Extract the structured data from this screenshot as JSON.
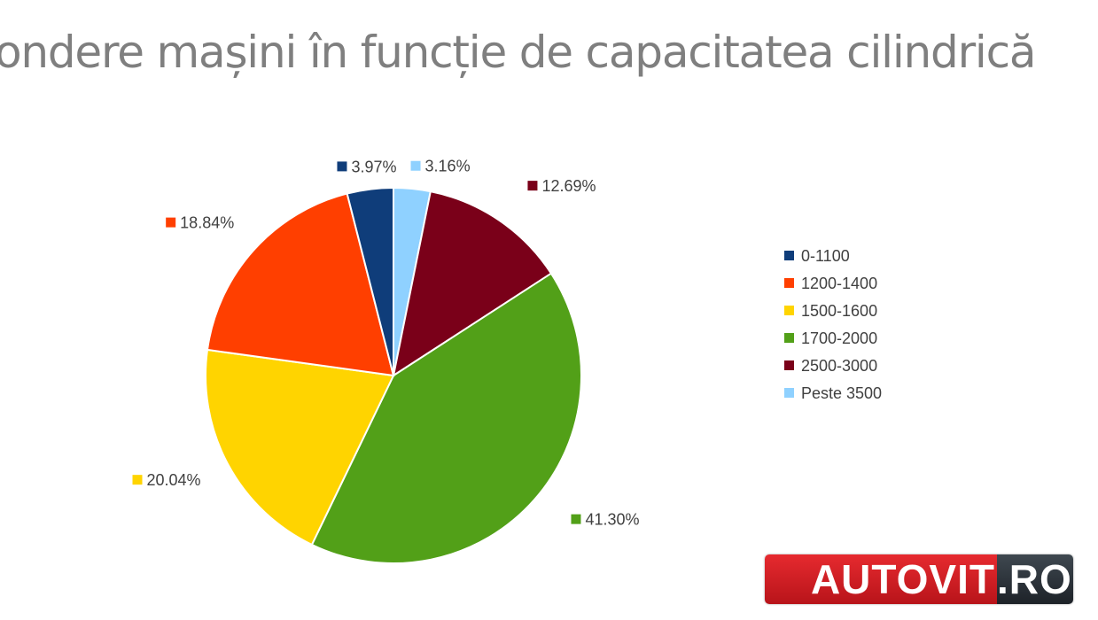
{
  "chart_data": {
    "type": "pie",
    "title": "ondere mașini în funcție de capacitatea cilindrică",
    "categories": [
      "0-1100",
      "1200-1400",
      "1500-1600",
      "1700-2000",
      "2500-3000",
      "Peste 3500"
    ],
    "values": [
      3.97,
      18.84,
      20.04,
      41.3,
      12.69,
      3.16
    ],
    "data_labels": [
      "3.97%",
      "18.84%",
      "20.04%",
      "41.30%",
      "12.69%",
      "3.16%"
    ],
    "colors": [
      "#0f3d7a",
      "#ff3f00",
      "#ffd400",
      "#52a018",
      "#7a0019",
      "#8fd1ff"
    ],
    "legend_position": "right",
    "start": "top",
    "direction": "clockwise"
  },
  "watermark": {
    "left": "AUTOVIT",
    "right": ".RO"
  }
}
